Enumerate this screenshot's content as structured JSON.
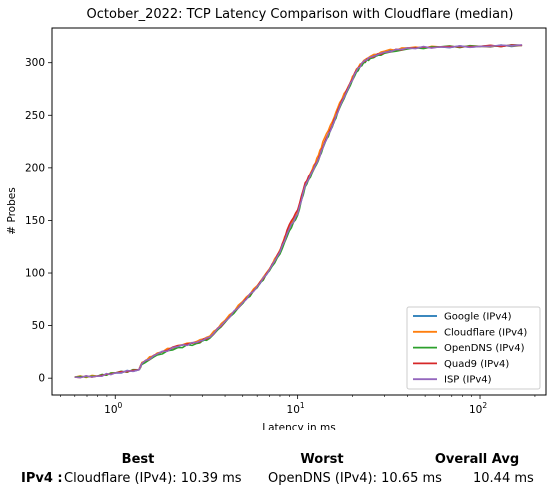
{
  "chart_data": {
    "type": "line",
    "title": "October_2022: TCP Latency Comparison with Cloudflare (median)",
    "xlabel": "Latency in ms",
    "ylabel": "# Probes",
    "xscale": "log",
    "xlim": [
      0.45,
      230
    ],
    "ylim": [
      -16,
      333
    ],
    "xticks": [
      {
        "value": 1,
        "base": "10",
        "exp": "0"
      },
      {
        "value": 10,
        "base": "10",
        "exp": "1"
      },
      {
        "value": 100,
        "base": "10",
        "exp": "2"
      }
    ],
    "yticks": [
      0,
      50,
      100,
      150,
      200,
      250,
      300
    ],
    "grid": false,
    "legend_position": "lower-right",
    "series": [
      {
        "name": "Google (IPv4)",
        "color": "#1f77b4",
        "x": [
          0.6,
          0.8,
          1.0,
          1.35,
          1.4,
          1.7,
          2.2,
          2.8,
          3.3,
          4.0,
          5.0,
          6.0,
          7.0,
          8.0,
          9.0,
          10.0,
          11.0,
          12.0,
          13.0,
          14.0,
          15.5,
          17.0,
          19.0,
          21.0,
          23.0,
          25.0,
          30.0,
          40.0,
          60.0,
          100.0,
          170.0
        ],
        "y": [
          1,
          2,
          5,
          8,
          14,
          23,
          30,
          34,
          39,
          54,
          72,
          87,
          103,
          121,
          143,
          157,
          183,
          196,
          208,
          223,
          240,
          258,
          276,
          292,
          301,
          305,
          310,
          314,
          315,
          315.5,
          316.5
        ]
      },
      {
        "name": "Cloudflare (IPv4)",
        "color": "#ff7f0e",
        "x": [
          0.6,
          0.8,
          1.0,
          1.35,
          1.4,
          1.7,
          2.2,
          2.8,
          3.3,
          4.0,
          5.0,
          6.0,
          7.0,
          8.0,
          9.0,
          10.0,
          11.0,
          12.0,
          13.0,
          14.0,
          15.5,
          17.0,
          19.0,
          21.0,
          23.0,
          25.0,
          30.0,
          40.0,
          60.0,
          100.0,
          170.0
        ],
        "y": [
          1,
          2,
          5,
          8,
          15,
          24,
          31,
          35,
          40,
          55,
          73,
          88,
          104,
          122,
          145,
          158,
          184,
          198,
          212,
          228,
          244,
          262,
          278,
          294,
          302,
          306,
          311,
          314,
          315,
          315.5,
          316.5
        ]
      },
      {
        "name": "OpenDNS (IPv4)",
        "color": "#2ca02c",
        "x": [
          0.6,
          0.8,
          1.0,
          1.35,
          1.4,
          1.7,
          2.2,
          2.8,
          3.3,
          4.0,
          5.0,
          6.0,
          7.0,
          8.0,
          9.0,
          10.0,
          11.0,
          12.0,
          13.0,
          14.0,
          15.5,
          17.0,
          19.0,
          21.0,
          23.0,
          25.0,
          30.0,
          40.0,
          60.0,
          100.0,
          170.0
        ],
        "y": [
          1,
          2,
          5,
          8,
          13,
          22,
          29,
          33,
          38,
          53,
          71,
          86,
          102,
          118,
          140,
          155,
          182,
          195,
          207,
          222,
          239,
          257,
          275,
          291,
          300,
          304,
          309,
          313,
          315,
          315.5,
          316.5
        ]
      },
      {
        "name": "Quad9 (IPv4)",
        "color": "#d62728",
        "x": [
          0.6,
          0.8,
          1.0,
          1.35,
          1.4,
          1.7,
          2.2,
          2.8,
          3.3,
          4.0,
          5.0,
          6.0,
          7.0,
          8.0,
          9.0,
          10.0,
          11.0,
          12.0,
          13.0,
          14.0,
          15.5,
          17.0,
          19.0,
          21.0,
          23.0,
          25.0,
          30.0,
          40.0,
          60.0,
          100.0,
          170.0
        ],
        "y": [
          1,
          2,
          5,
          8,
          14,
          23,
          31,
          34,
          39,
          54,
          72,
          87,
          103,
          121,
          146,
          160,
          186,
          197,
          209,
          224,
          241,
          259,
          277,
          293,
          301,
          305,
          310,
          314,
          315,
          315.5,
          316.5
        ]
      },
      {
        "name": "ISP (IPv4)",
        "color": "#9467bd",
        "x": [
          0.6,
          0.8,
          1.0,
          1.35,
          1.4,
          1.7,
          2.2,
          2.8,
          3.3,
          4.0,
          5.0,
          6.0,
          7.0,
          8.0,
          9.0,
          10.0,
          11.0,
          12.0,
          13.0,
          14.0,
          15.5,
          17.0,
          19.0,
          21.0,
          23.0,
          25.0,
          30.0,
          40.0,
          60.0,
          100.0,
          170.0
        ],
        "y": [
          1,
          2,
          5,
          8,
          14,
          23,
          30,
          34,
          39,
          54,
          72,
          87,
          103,
          120,
          142,
          156,
          183,
          196,
          208,
          223,
          240,
          258,
          276,
          292,
          301,
          305,
          310,
          314,
          315,
          315.5,
          317
        ]
      }
    ]
  },
  "summary": {
    "headers": {
      "best": "Best",
      "worst": "Worst",
      "avg": "Overall Avg"
    },
    "row_label": "IPv4 :",
    "best_value": "Cloudflare (IPv4): 10.39 ms",
    "worst_value": "OpenDNS (IPv4): 10.65 ms",
    "avg_value": "10.44 ms"
  }
}
